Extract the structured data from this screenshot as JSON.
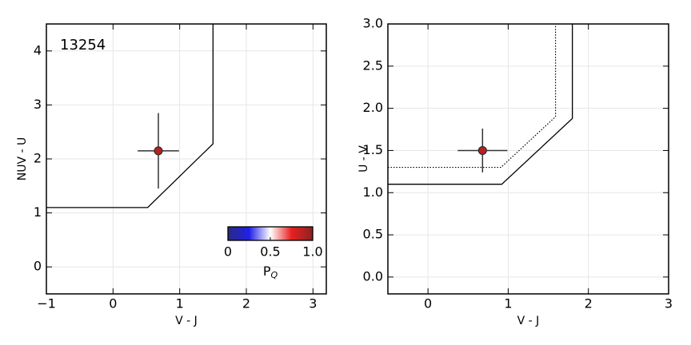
{
  "chart_data": [
    {
      "type": "scatter",
      "xlabel": "V - J",
      "ylabel": "NUV - U",
      "annotation": "13254",
      "xlim": [
        -1,
        3.2
      ],
      "ylim": [
        -0.5,
        4.5
      ],
      "xticks": [
        {
          "value": -1,
          "label": "−1"
        },
        0,
        1,
        2,
        3
      ],
      "yticks": [
        0,
        1,
        2,
        3,
        4
      ],
      "grid": true,
      "series": [
        {
          "color": "#b22222",
          "x": [
            0.68
          ],
          "values": [
            2.15
          ],
          "xerr": [
            0.31
          ],
          "yerr": [
            0.7
          ]
        }
      ],
      "lines": [
        {
          "style": "solid",
          "x": [
            -1,
            0.52,
            1.5,
            1.5
          ],
          "y": [
            1.1,
            1.1,
            2.28,
            4.5
          ]
        }
      ],
      "colorbar": {
        "label": "P",
        "label_sub": "Q",
        "lim": [
          0,
          1
        ],
        "ticks": [
          0,
          0.5,
          {
            "value": 1,
            "label": "1.0"
          }
        ],
        "colors": [
          "#2a2a80",
          "#2020e8",
          "#ffffff",
          "#e82020",
          "#8a2222"
        ]
      }
    },
    {
      "type": "scatter",
      "xlabel": "V - J",
      "ylabel": "U - V",
      "xlim": [
        -0.5,
        3
      ],
      "ylim": [
        -0.2,
        3
      ],
      "xticks": [
        0,
        1,
        2,
        3
      ],
      "yticks": [
        {
          "value": 0,
          "label": "0.0"
        },
        0.5,
        {
          "value": 1,
          "label": "1.0"
        },
        1.5,
        {
          "value": 2,
          "label": "2.0"
        },
        2.5,
        {
          "value": 3,
          "label": "3.0"
        }
      ],
      "grid": true,
      "series": [
        {
          "color": "#b22222",
          "x": [
            0.68
          ],
          "values": [
            1.5
          ],
          "xerr": [
            0.31
          ],
          "yerr": [
            0.26
          ]
        }
      ],
      "lines": [
        {
          "style": "solid",
          "x": [
            -0.5,
            0.92,
            1.8,
            1.8
          ],
          "y": [
            1.1,
            1.1,
            1.88,
            3
          ]
        },
        {
          "style": "dotted",
          "x": [
            -0.5,
            0.91,
            1.59,
            1.59
          ],
          "y": [
            1.3,
            1.3,
            1.9,
            3
          ]
        }
      ]
    }
  ]
}
